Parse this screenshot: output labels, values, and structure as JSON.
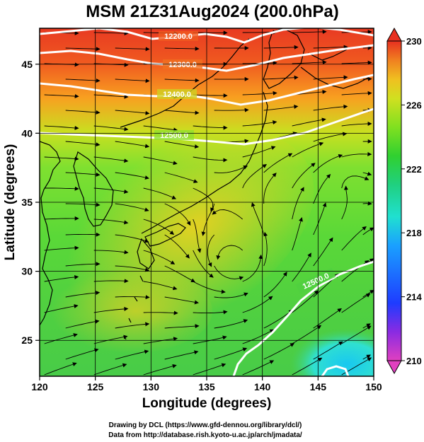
{
  "title": "MSM 21Z31Aug2024 (200.0hPa)",
  "credits": {
    "line1": "Drawing by DCL (https://www.gfd-dennou.org/library/dcl/)",
    "line2": "Data from http://database.rish.kyoto-u.ac.jp/arch/jmadata/"
  },
  "map": {
    "xlabel": "Longitude (degrees)",
    "ylabel": "Latitude  (degrees)",
    "lon_range": [
      120,
      150
    ],
    "lat_range": [
      22.4,
      47.6
    ],
    "lon_ticks": [
      "120",
      "125",
      "130",
      "135",
      "140",
      "145",
      "150"
    ],
    "lat_ticks": [
      "25",
      "30",
      "35",
      "40",
      "45"
    ],
    "grid": true,
    "contours": [
      {
        "label": "12200.0",
        "value": 12200
      },
      {
        "label": "12300.0",
        "value": 12300
      },
      {
        "label": "12400.0",
        "value": 12400
      },
      {
        "label": "12500.0",
        "value": 12500
      },
      {
        "label": "12500.0",
        "value": 12500
      }
    ]
  },
  "colorbar": {
    "min": 210,
    "max": 230,
    "tick_labels": [
      "230",
      "226",
      "222",
      "218",
      "214",
      "210"
    ],
    "colors": [
      "#e040c0",
      "#8a2be2",
      "#1e3cff",
      "#1aa0ff",
      "#20e0d0",
      "#20d080",
      "#30d030",
      "#80e020",
      "#d0e020",
      "#f0c020",
      "#f08020",
      "#e83020"
    ]
  }
}
